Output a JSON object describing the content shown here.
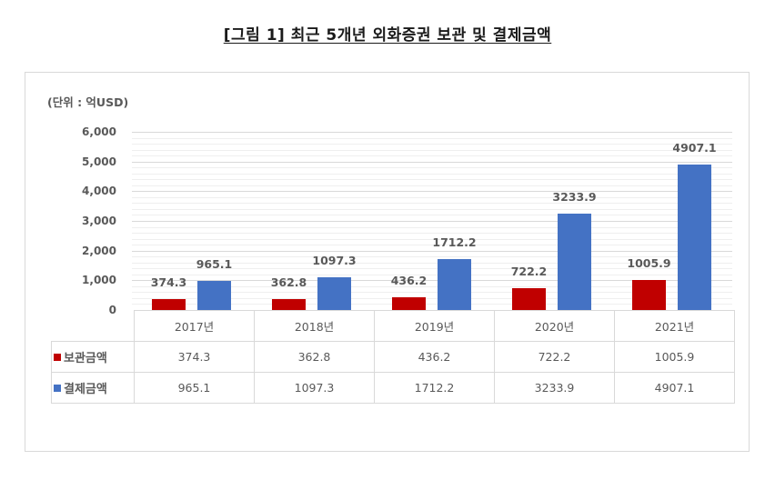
{
  "title": "[그림 1] 최근 5개년 외화증권 보관 및 결제금액",
  "unit_label": "(단위 : 억USD)",
  "colors": {
    "보관금액": "#C00000",
    "결제금액": "#4472C4",
    "gridline": "#D9D9D9"
  },
  "y_axis": {
    "ticks": [
      "6,000",
      "5,000",
      "4,000",
      "3,000",
      "2,000",
      "1,000",
      "0"
    ]
  },
  "table": {
    "headers": [
      "2017년",
      "2018년",
      "2019년",
      "2020년",
      "2021년"
    ],
    "rows": [
      {
        "label": "보관금액",
        "values": [
          "374.3",
          "362.8",
          "436.2",
          "722.2",
          "1005.9"
        ]
      },
      {
        "label": "결제금액",
        "values": [
          "965.1",
          "1097.3",
          "1712.2",
          "3233.9",
          "4907.1"
        ]
      }
    ]
  },
  "chart_data": {
    "type": "bar",
    "title": "[그림 1] 최근 5개년 외화증권 보관 및 결제금액",
    "xlabel": "",
    "ylabel": "(단위 : 억USD)",
    "categories": [
      "2017년",
      "2018년",
      "2019년",
      "2020년",
      "2021년"
    ],
    "series": [
      {
        "name": "보관금액",
        "color": "#C00000",
        "values": [
          374.3,
          362.8,
          436.2,
          722.2,
          1005.9
        ]
      },
      {
        "name": "결제금액",
        "color": "#4472C4",
        "values": [
          965.1,
          1097.3,
          1712.2,
          3233.9,
          4907.1
        ]
      }
    ],
    "ylim": [
      0,
      6000
    ],
    "y_major_step": 1000,
    "y_minor_step": 200,
    "grid": true,
    "legend": "data table below chart with color keys",
    "data_labels": true
  }
}
